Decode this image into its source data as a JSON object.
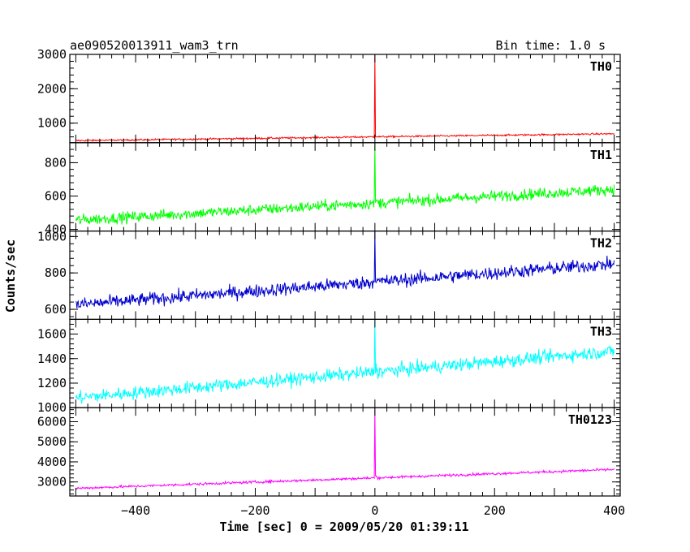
{
  "chart_data": {
    "type": "line",
    "title": "ae090520013911_wam3_trn",
    "bin_time_label": "Bin time: 1.0 s",
    "xlabel": "Time [sec] 0 = 2009/05/20 01:39:11",
    "ylabel": "Counts/sec",
    "xlim": [
      -510,
      410
    ],
    "x_ticks": [
      -400,
      -200,
      0,
      200,
      400
    ],
    "x_tick_labels": [
      "−400",
      "−200",
      "0",
      "200",
      "400"
    ],
    "bin_seconds": 1.0,
    "panels": [
      {
        "name": "TH0",
        "color": "#ff0000",
        "ylim": [
          430,
          3000
        ],
        "y_ticks": [
          1000,
          2000,
          3000
        ],
        "y_tick_labels": [
          "1000",
          "2000",
          "3000"
        ],
        "baseline_start": 490,
        "baseline_end": 690,
        "noise": 18,
        "spike_peak": 3000,
        "spike_tail": 620
      },
      {
        "name": "TH1",
        "color": "#00ff00",
        "ylim": [
          390,
          920
        ],
        "y_ticks": [
          400,
          600,
          800
        ],
        "y_tick_labels": [
          "400",
          "600",
          "800"
        ],
        "baseline_start": 455,
        "baseline_end": 640,
        "noise": 24,
        "spike_peak": 920,
        "spike_tail": 560
      },
      {
        "name": "TH2",
        "color": "#0000cd",
        "ylim": [
          545,
          1030
        ],
        "y_ticks": [
          600,
          800,
          1000
        ],
        "y_tick_labels": [
          "600",
          "800",
          "1000"
        ],
        "baseline_start": 625,
        "baseline_end": 850,
        "noise": 26,
        "spike_peak": 1030,
        "spike_tail": 760
      },
      {
        "name": "TH3",
        "color": "#00ffff",
        "ylim": [
          1000,
          1720
        ],
        "y_ticks": [
          1000,
          1200,
          1400,
          1600
        ],
        "y_tick_labels": [
          "1000",
          "1200",
          "1400",
          "1600"
        ],
        "baseline_start": 1080,
        "baseline_end": 1460,
        "noise": 38,
        "spike_peak": 1720,
        "spike_tail": 1300
      },
      {
        "name": "TH0123",
        "color": "#ff00ff",
        "ylim": [
          2300,
          6700
        ],
        "y_ticks": [
          3000,
          4000,
          5000,
          6000
        ],
        "y_tick_labels": [
          "3000",
          "4000",
          "5000",
          "6000"
        ],
        "baseline_start": 2680,
        "baseline_end": 3620,
        "noise": 45,
        "spike_peak": 6700,
        "spike_tail": 3250
      }
    ],
    "time_range": [
      -500,
      400
    ],
    "grid": false,
    "legend": "none"
  }
}
